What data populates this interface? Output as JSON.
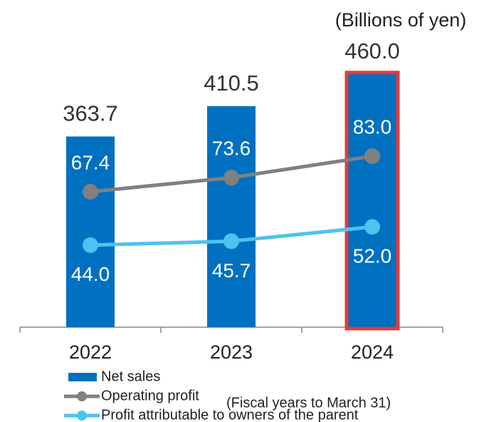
{
  "chart_data": {
    "type": "bar-line",
    "unit_note": "(Billions of yen)",
    "footnote": "(Fiscal years to March 31)",
    "categories": [
      "2022",
      "2023",
      "2024"
    ],
    "ylim": [
      70,
      530
    ],
    "y2lim": [
      8,
      139
    ],
    "highlight": "2024",
    "highlight_color": "#e03c3c",
    "series": [
      {
        "name": "Net sales",
        "type": "bar",
        "color": "#0070c0",
        "values": [
          363.7,
          410.5,
          460.0
        ],
        "value_labels": [
          "363.7",
          "410.5",
          "460.0"
        ],
        "label_color": "#333333",
        "label_position": "top"
      },
      {
        "name": "Operating profit",
        "type": "line",
        "axis": "y2",
        "color": "#808080",
        "values": [
          67.4,
          73.6,
          83.0
        ],
        "value_labels": [
          "67.4",
          "73.6",
          "83.0"
        ],
        "label_color": "#ffffff",
        "label_position": "above"
      },
      {
        "name": "Profit attributable to owners of the parent",
        "type": "line",
        "axis": "y2",
        "color": "#4dc3f0",
        "values": [
          44.0,
          45.7,
          52.0
        ],
        "value_labels": [
          "44.0",
          "45.7",
          "52.0"
        ],
        "label_color": "#ffffff",
        "label_position": "below"
      }
    ]
  }
}
